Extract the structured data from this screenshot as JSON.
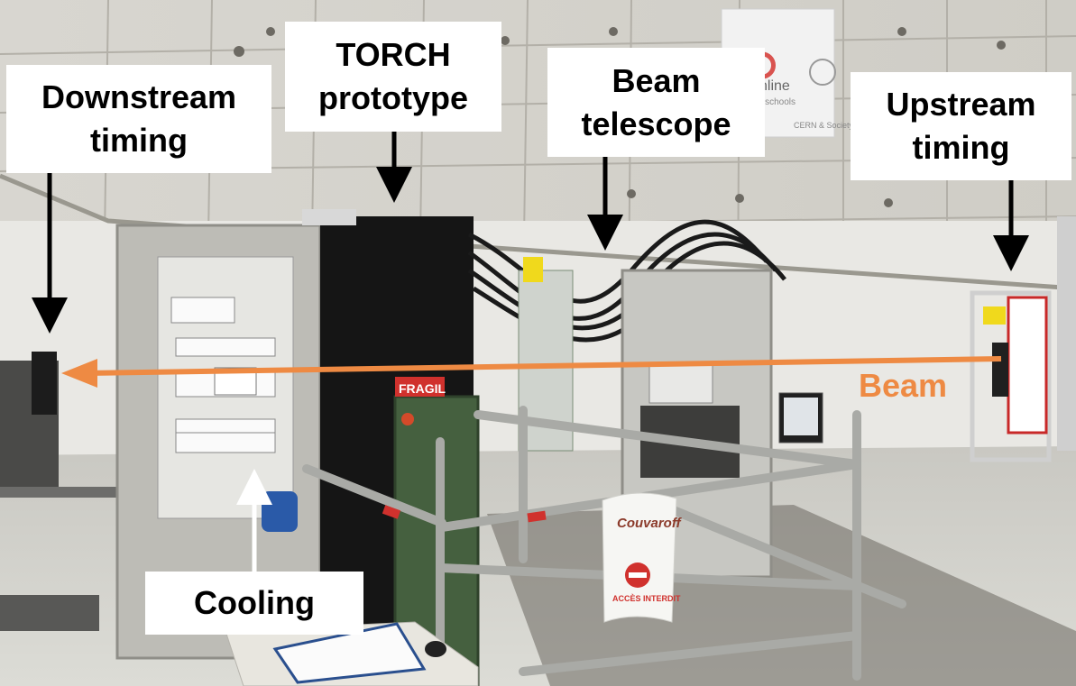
{
  "labels": {
    "downstream_timing": [
      "Downstream",
      "timing"
    ],
    "torch_prototype": [
      "TORCH",
      "prototype"
    ],
    "beam_telescope": [
      "Beam",
      "telescope"
    ],
    "upstream_timing": [
      "Upstream",
      "timing"
    ],
    "cooling": "Cooling",
    "beam": "Beam"
  },
  "signs": {
    "banner": [
      "nline",
      "r schools",
      "CERN & Society"
    ],
    "barrier_brand": "Couvaroff",
    "barrier_warning": "ACCÈS INTERDIT",
    "red_tag": "FRAGIL"
  },
  "colors": {
    "beam_arrow": "#ee8a43",
    "label_background": "#ffffff",
    "label_text": "#000000"
  }
}
